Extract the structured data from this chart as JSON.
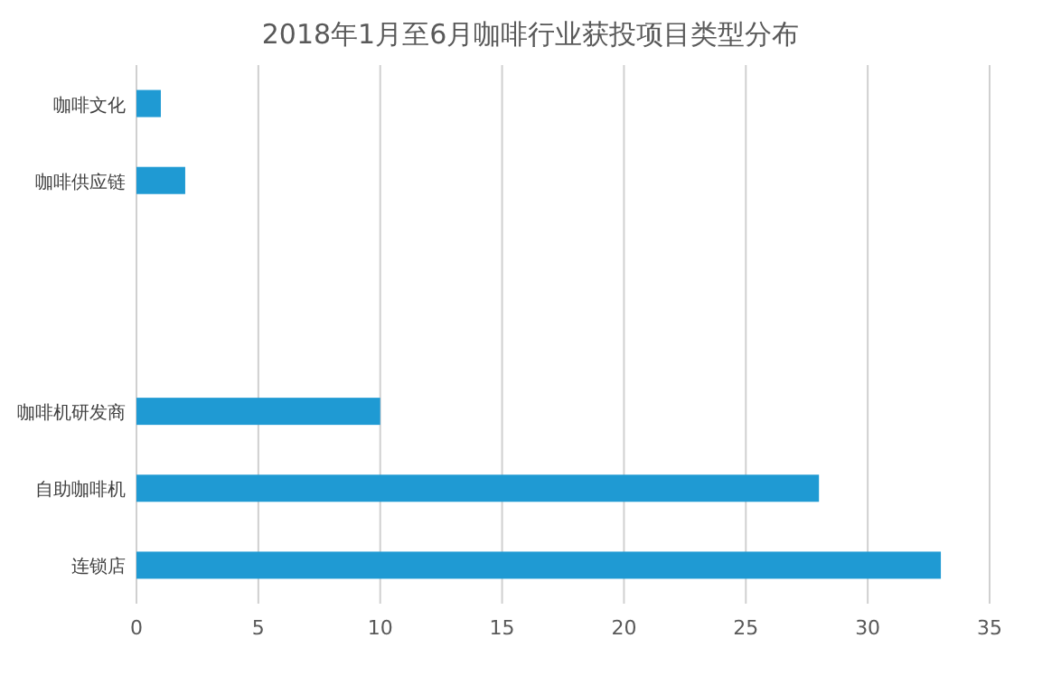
{
  "chart_data": {
    "type": "bar",
    "orientation": "horizontal",
    "title": "2018年1月至6月咖啡行业获投项目类型分布",
    "categories": [
      "咖啡文化",
      "咖啡供应链",
      null,
      null,
      "咖啡机研发商",
      "自助咖啡机",
      "连锁店"
    ],
    "values": [
      1,
      2,
      null,
      null,
      10,
      28,
      33
    ],
    "color": "#1f9ad3",
    "xlim": [
      0,
      35
    ],
    "xticks": [
      0,
      5,
      10,
      15,
      20,
      25,
      30,
      35
    ],
    "grid": "x"
  }
}
